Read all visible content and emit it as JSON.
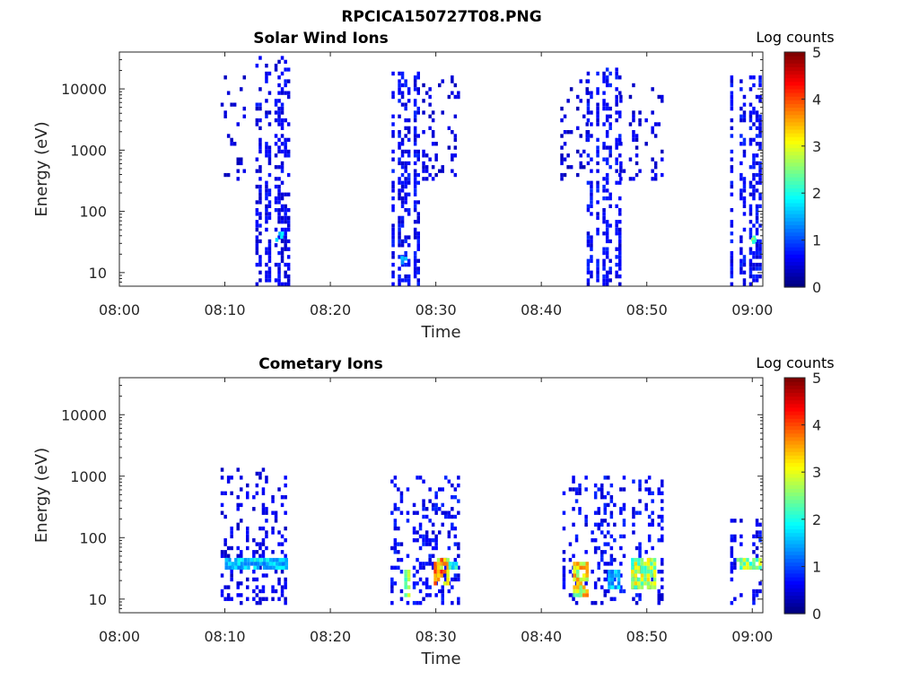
{
  "figure_title": "RPCICA150727T08.PNG",
  "colors": {
    "axis": "#262626",
    "background": "#ffffff"
  },
  "chart_data": [
    {
      "type": "heatmap",
      "title": "Solar Wind Ions",
      "xlabel": "Time",
      "ylabel": "Energy (eV)",
      "x_ticks": [
        "08:00",
        "08:10",
        "08:20",
        "08:30",
        "08:40",
        "08:50",
        "09:00"
      ],
      "xlim_minutes": [
        0,
        61
      ],
      "y_scale": "log",
      "y_ticks": [
        "10",
        "100",
        "1000",
        "10000"
      ],
      "ylim": [
        6,
        40000
      ],
      "colorbar": {
        "label": "Log counts",
        "ticks": [
          "0",
          "1",
          "2",
          "3",
          "4",
          "5"
        ],
        "range": [
          0,
          5
        ],
        "colormap": "jet"
      },
      "bursts": [
        {
          "t_start": 9.6,
          "t_end": 12.2,
          "e_min": 300,
          "e_max": 15000,
          "density": 0.22,
          "level": 0.4
        },
        {
          "t_start": 12.9,
          "t_end": 16.0,
          "e_min": 6,
          "e_max": 30000,
          "density": 0.55,
          "level": 0.55
        },
        {
          "t_start": 25.8,
          "t_end": 28.4,
          "e_min": 6,
          "e_max": 20000,
          "density": 0.6,
          "level": 0.6
        },
        {
          "t_start": 28.4,
          "t_end": 32.2,
          "e_min": 300,
          "e_max": 15000,
          "density": 0.25,
          "level": 0.45
        },
        {
          "t_start": 41.8,
          "t_end": 44.3,
          "e_min": 300,
          "e_max": 15000,
          "density": 0.25,
          "level": 0.4
        },
        {
          "t_start": 44.3,
          "t_end": 47.4,
          "e_min": 6,
          "e_max": 20000,
          "density": 0.6,
          "level": 0.6
        },
        {
          "t_start": 47.4,
          "t_end": 51.4,
          "e_min": 300,
          "e_max": 12000,
          "density": 0.25,
          "level": 0.45
        },
        {
          "t_start": 57.9,
          "t_end": 60.8,
          "e_min": 6,
          "e_max": 15000,
          "density": 0.55,
          "level": 0.6
        }
      ],
      "hotspots": [
        {
          "t": 15.0,
          "e": 35,
          "level": 1.8
        },
        {
          "t": 27.0,
          "e": 15,
          "level": 1.6
        },
        {
          "t": 60.3,
          "e": 35,
          "level": 2.4
        }
      ]
    },
    {
      "type": "heatmap",
      "title": "Cometary Ions",
      "xlabel": "Time",
      "ylabel": "Energy (eV)",
      "x_ticks": [
        "08:00",
        "08:10",
        "08:20",
        "08:30",
        "08:40",
        "08:50",
        "09:00"
      ],
      "xlim_minutes": [
        0,
        61
      ],
      "y_scale": "log",
      "y_ticks": [
        "10",
        "100",
        "1000",
        "10000"
      ],
      "ylim": [
        6,
        40000
      ],
      "colorbar": {
        "label": "Log counts",
        "ticks": [
          "0",
          "1",
          "2",
          "3",
          "4",
          "5"
        ],
        "range": [
          0,
          5
        ],
        "colormap": "jet"
      },
      "bursts": [
        {
          "t_start": 9.6,
          "t_end": 15.9,
          "e_min": 7,
          "e_max": 1200,
          "density": 0.3,
          "level": 0.5
        },
        {
          "t_start": 25.7,
          "t_end": 32.2,
          "e_min": 7,
          "e_max": 1000,
          "density": 0.3,
          "level": 0.6
        },
        {
          "t_start": 41.7,
          "t_end": 51.4,
          "e_min": 7,
          "e_max": 1000,
          "density": 0.3,
          "level": 0.6
        },
        {
          "t_start": 57.9,
          "t_end": 60.8,
          "e_min": 7,
          "e_max": 200,
          "density": 0.35,
          "level": 0.6
        }
      ],
      "bands": [
        {
          "t_start": 10.0,
          "t_end": 15.9,
          "e_min": 28,
          "e_max": 45,
          "level": 1.7
        },
        {
          "t_start": 27.0,
          "t_end": 27.6,
          "e_min": 10,
          "e_max": 30,
          "level": 2.6
        },
        {
          "t_start": 29.8,
          "t_end": 31.2,
          "e_min": 15,
          "e_max": 45,
          "level": 3.6
        },
        {
          "t_start": 31.2,
          "t_end": 32.2,
          "e_min": 28,
          "e_max": 40,
          "level": 2.0
        },
        {
          "t_start": 43.0,
          "t_end": 44.2,
          "e_min": 10,
          "e_max": 40,
          "level": 3.2
        },
        {
          "t_start": 46.3,
          "t_end": 47.4,
          "e_min": 14,
          "e_max": 28,
          "level": 1.6
        },
        {
          "t_start": 48.5,
          "t_end": 50.6,
          "e_min": 14,
          "e_max": 45,
          "level": 2.8
        },
        {
          "t_start": 58.5,
          "t_end": 60.8,
          "e_min": 28,
          "e_max": 45,
          "level": 2.6
        }
      ]
    }
  ]
}
